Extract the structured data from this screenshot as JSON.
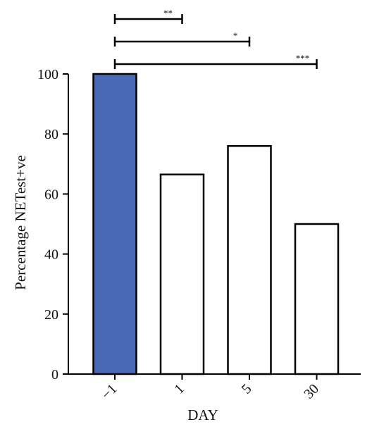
{
  "chart_data": {
    "type": "bar",
    "title": "",
    "xlabel": "DAY",
    "ylabel": "Percentage NETest+ve",
    "categories": [
      "−1",
      "1",
      "5",
      "30"
    ],
    "values": [
      100,
      66.5,
      76,
      50
    ],
    "ylim": [
      0,
      100
    ],
    "yticks": [
      0,
      20,
      40,
      60,
      80,
      100
    ],
    "grid": false,
    "legend": "none",
    "bar_fill_colors": [
      "#4a69b5",
      "#ffffff",
      "#ffffff",
      "#ffffff"
    ],
    "bar_edge_color": "#000000",
    "x_tick_rotation_deg": -45,
    "significance": [
      {
        "from": 0,
        "to": 1,
        "label": "**"
      },
      {
        "from": 0,
        "to": 2,
        "label": "*"
      },
      {
        "from": 0,
        "to": 3,
        "label": "***"
      }
    ]
  }
}
